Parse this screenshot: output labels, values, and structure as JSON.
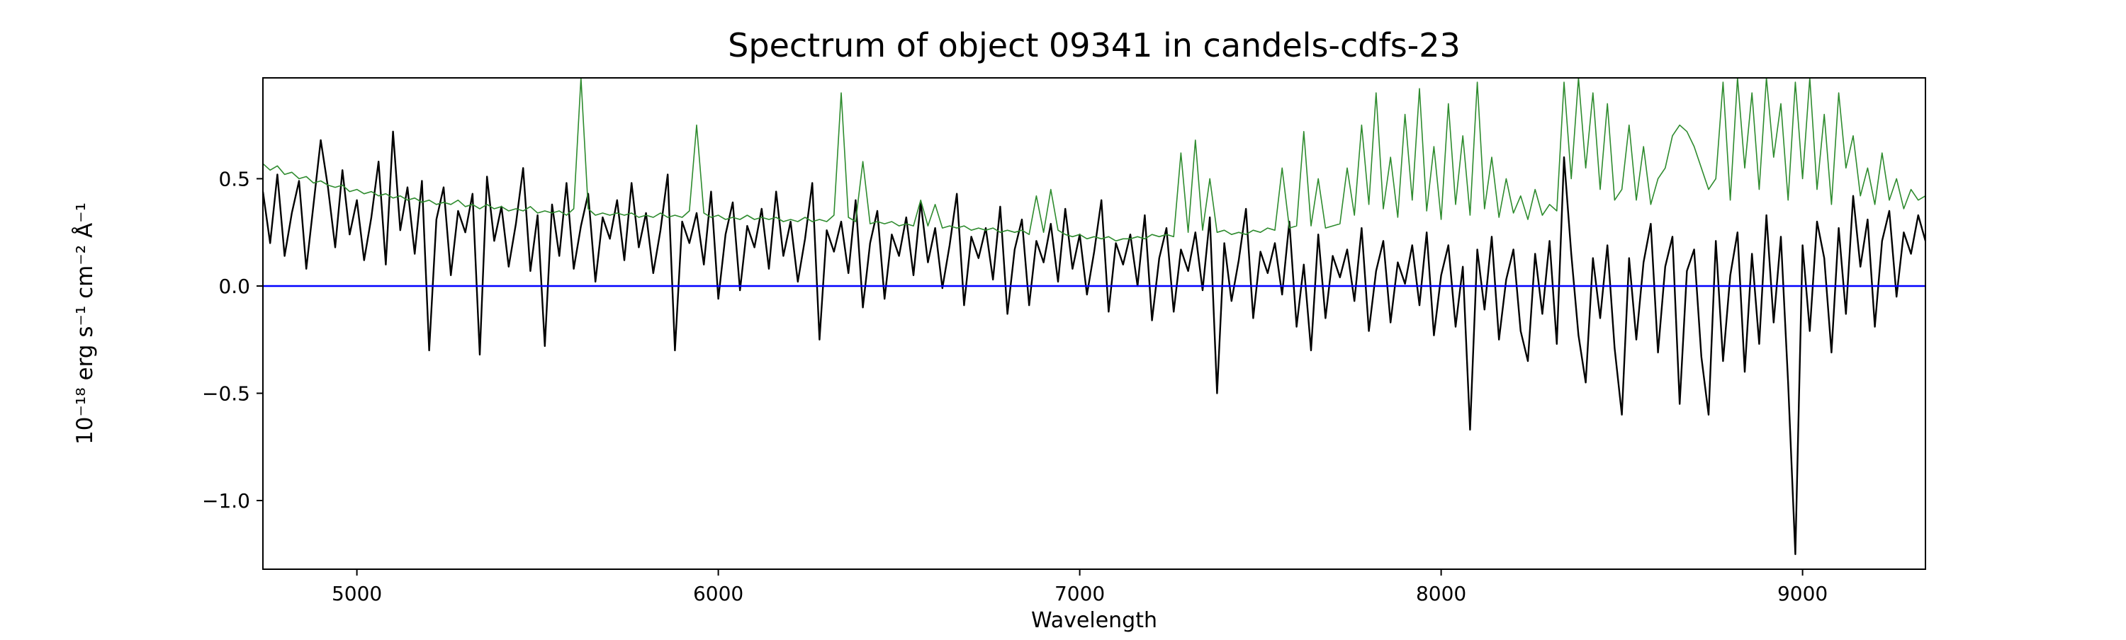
{
  "figure": {
    "background": "#ffffff",
    "axes_color": "#000000"
  },
  "chart_data": {
    "type": "line",
    "title": "Spectrum of object 09341 in candels-cdfs-23",
    "xlabel": "Wavelength",
    "ylabel": "10⁻¹⁸ erg s⁻¹ cm⁻² Å⁻¹",
    "xlim": [
      4740,
      9340
    ],
    "ylim": [
      -1.32,
      0.97
    ],
    "grid": false,
    "legend": "none",
    "x_start": 4740,
    "x_step": 20,
    "x_ticks": [
      {
        "value": 5000,
        "label": "5000"
      },
      {
        "value": 6000,
        "label": "6000"
      },
      {
        "value": 7000,
        "label": "7000"
      },
      {
        "value": 8000,
        "label": "8000"
      },
      {
        "value": 9000,
        "label": "9000"
      }
    ],
    "y_ticks": [
      {
        "value": -1.0,
        "label": "−1.0"
      },
      {
        "value": -0.5,
        "label": "−0.5"
      },
      {
        "value": 0.0,
        "label": "0.0"
      },
      {
        "value": 0.5,
        "label": "0.5"
      }
    ],
    "series": [
      {
        "name": "object-spectrum",
        "color": "#000000",
        "width": 2.4,
        "values": [
          0.44,
          0.2,
          0.52,
          0.14,
          0.34,
          0.49,
          0.08,
          0.38,
          0.68,
          0.46,
          0.18,
          0.54,
          0.24,
          0.4,
          0.12,
          0.32,
          0.58,
          0.1,
          0.72,
          0.26,
          0.46,
          0.15,
          0.49,
          -0.3,
          0.31,
          0.46,
          0.05,
          0.35,
          0.25,
          0.43,
          -0.32,
          0.51,
          0.21,
          0.37,
          0.09,
          0.29,
          0.55,
          0.07,
          0.33,
          -0.28,
          0.38,
          0.14,
          0.48,
          0.08,
          0.28,
          0.43,
          0.02,
          0.32,
          0.22,
          0.4,
          0.12,
          0.48,
          0.18,
          0.34,
          0.06,
          0.26,
          0.52,
          -0.3,
          0.3,
          0.2,
          0.34,
          0.1,
          0.44,
          -0.06,
          0.24,
          0.39,
          -0.02,
          0.28,
          0.18,
          0.36,
          0.08,
          0.44,
          0.14,
          0.3,
          0.02,
          0.22,
          0.48,
          -0.25,
          0.26,
          0.16,
          0.3,
          0.06,
          0.4,
          -0.1,
          0.2,
          0.35,
          -0.06,
          0.24,
          0.14,
          0.32,
          0.05,
          0.39,
          0.11,
          0.27,
          -0.01,
          0.19,
          0.43,
          -0.09,
          0.23,
          0.13,
          0.27,
          0.03,
          0.37,
          -0.13,
          0.17,
          0.31,
          -0.09,
          0.21,
          0.11,
          0.29,
          0.02,
          0.36,
          0.08,
          0.24,
          -0.04,
          0.16,
          0.4,
          -0.12,
          0.2,
          0.1,
          0.24,
          0.0,
          0.33,
          -0.16,
          0.13,
          0.27,
          -0.12,
          0.17,
          0.07,
          0.25,
          -0.02,
          0.32,
          -0.5,
          0.2,
          -0.07,
          0.12,
          0.36,
          -0.15,
          0.16,
          0.06,
          0.2,
          -0.04,
          0.3,
          -0.19,
          0.1,
          -0.3,
          0.24,
          -0.15,
          0.14,
          0.04,
          0.17,
          -0.07,
          0.27,
          -0.21,
          0.07,
          0.21,
          -0.17,
          0.11,
          0.01,
          0.19,
          -0.09,
          0.25,
          -0.23,
          0.05,
          0.19,
          -0.19,
          0.09,
          -0.67,
          0.17,
          -0.11,
          0.23,
          -0.25,
          0.03,
          0.17,
          -0.21,
          -0.35,
          0.15,
          -0.13,
          0.21,
          -0.27,
          0.6,
          0.15,
          -0.23,
          -0.45,
          0.13,
          -0.15,
          0.19,
          -0.29,
          -0.6,
          0.13,
          -0.25,
          0.11,
          0.29,
          -0.31,
          0.09,
          0.23,
          -0.55,
          0.07,
          0.17,
          -0.33,
          -0.6,
          0.21,
          -0.35,
          0.05,
          0.25,
          -0.4,
          0.15,
          -0.27,
          0.33,
          -0.17,
          0.23,
          -0.45,
          -1.25,
          0.19,
          -0.21,
          0.3,
          0.13,
          -0.31,
          0.27,
          -0.13,
          0.42,
          0.09,
          0.31,
          -0.19,
          0.21,
          0.35,
          -0.05,
          0.25,
          0.15,
          0.33,
          0.21
        ]
      },
      {
        "name": "noise-spectrum",
        "color": "#2e8b2e",
        "width": 1.6,
        "values": [
          0.57,
          0.54,
          0.56,
          0.52,
          0.53,
          0.5,
          0.51,
          0.48,
          0.49,
          0.47,
          0.46,
          0.47,
          0.44,
          0.45,
          0.43,
          0.44,
          0.42,
          0.43,
          0.41,
          0.42,
          0.4,
          0.41,
          0.39,
          0.4,
          0.38,
          0.39,
          0.38,
          0.4,
          0.37,
          0.38,
          0.36,
          0.38,
          0.36,
          0.37,
          0.35,
          0.36,
          0.35,
          0.37,
          0.34,
          0.35,
          0.34,
          0.35,
          0.33,
          0.36,
          0.97,
          0.36,
          0.33,
          0.34,
          0.33,
          0.34,
          0.33,
          0.34,
          0.32,
          0.33,
          0.32,
          0.34,
          0.32,
          0.33,
          0.32,
          0.35,
          0.75,
          0.34,
          0.32,
          0.33,
          0.31,
          0.32,
          0.31,
          0.33,
          0.31,
          0.32,
          0.31,
          0.32,
          0.3,
          0.31,
          0.3,
          0.32,
          0.3,
          0.31,
          0.3,
          0.33,
          0.9,
          0.32,
          0.3,
          0.58,
          0.29,
          0.3,
          0.29,
          0.3,
          0.28,
          0.29,
          0.28,
          0.4,
          0.28,
          0.38,
          0.27,
          0.28,
          0.27,
          0.28,
          0.26,
          0.27,
          0.26,
          0.27,
          0.25,
          0.26,
          0.25,
          0.26,
          0.24,
          0.42,
          0.25,
          0.45,
          0.26,
          0.24,
          0.23,
          0.24,
          0.22,
          0.23,
          0.22,
          0.23,
          0.21,
          0.22,
          0.22,
          0.23,
          0.22,
          0.24,
          0.23,
          0.24,
          0.23,
          0.62,
          0.25,
          0.68,
          0.26,
          0.5,
          0.25,
          0.26,
          0.24,
          0.25,
          0.24,
          0.26,
          0.25,
          0.27,
          0.26,
          0.55,
          0.27,
          0.28,
          0.72,
          0.28,
          0.5,
          0.27,
          0.28,
          0.29,
          0.55,
          0.33,
          0.75,
          0.38,
          0.9,
          0.36,
          0.6,
          0.32,
          0.8,
          0.4,
          0.92,
          0.35,
          0.65,
          0.31,
          0.85,
          0.38,
          0.7,
          0.33,
          0.95,
          0.36,
          0.6,
          0.32,
          0.5,
          0.34,
          0.42,
          0.31,
          0.45,
          0.33,
          0.38,
          0.35,
          0.95,
          0.5,
          0.97,
          0.55,
          0.9,
          0.45,
          0.85,
          0.4,
          0.45,
          0.75,
          0.4,
          0.65,
          0.38,
          0.5,
          0.55,
          0.7,
          0.75,
          0.72,
          0.65,
          0.55,
          0.45,
          0.5,
          0.95,
          0.4,
          0.97,
          0.55,
          0.9,
          0.45,
          0.97,
          0.6,
          0.85,
          0.4,
          0.95,
          0.5,
          0.97,
          0.45,
          0.8,
          0.38,
          0.9,
          0.55,
          0.7,
          0.42,
          0.55,
          0.38,
          0.62,
          0.4,
          0.5,
          0.36,
          0.45,
          0.4,
          0.42
        ]
      },
      {
        "name": "zero-line",
        "color": "#0000ff",
        "width": 2.6,
        "constant": 0
      }
    ]
  }
}
